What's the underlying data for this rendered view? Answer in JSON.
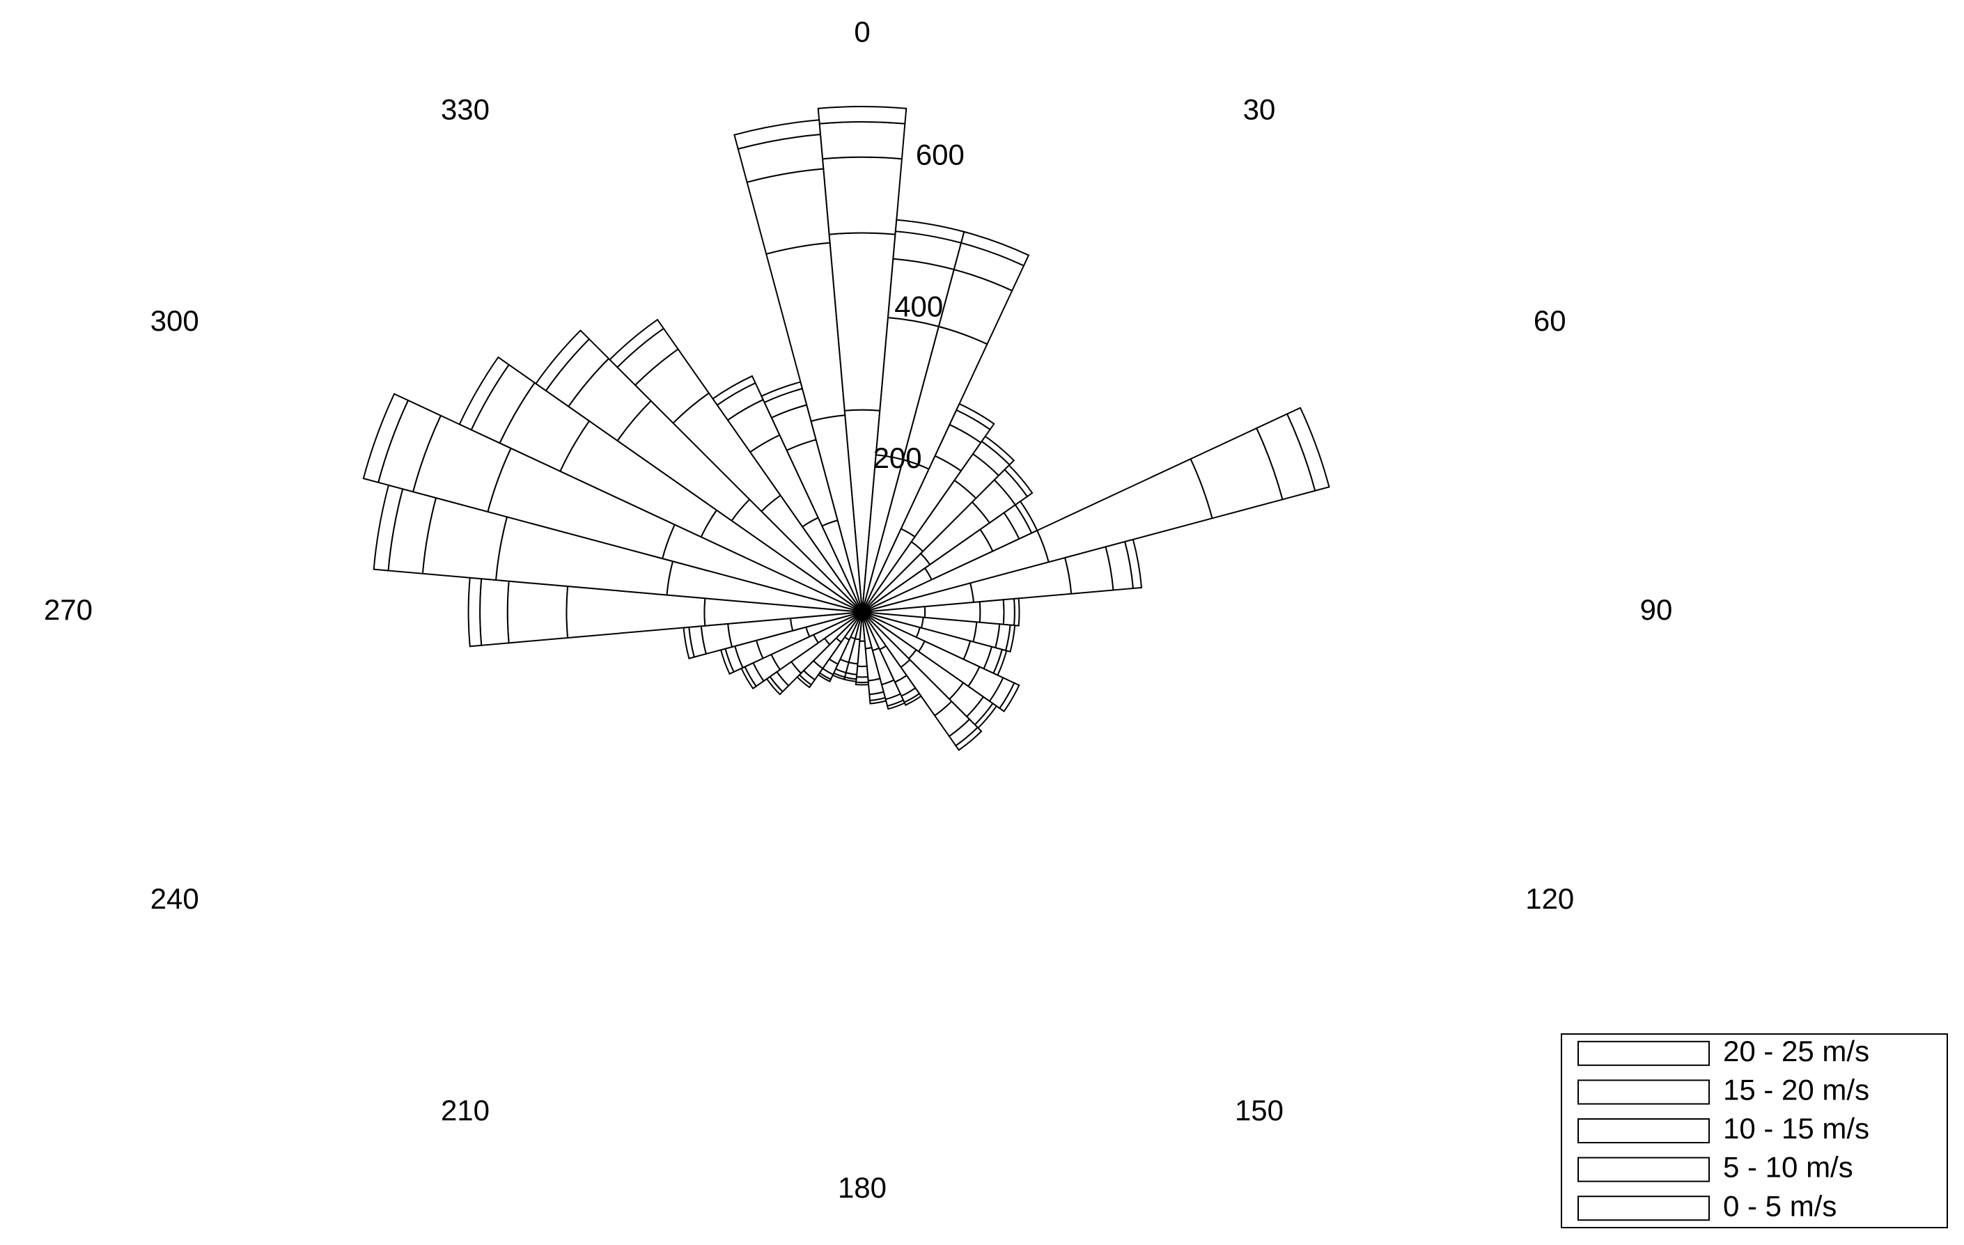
{
  "chart_data": {
    "type": "windrose",
    "x": [
      0,
      10,
      20,
      30,
      40,
      50,
      60,
      70,
      80,
      90,
      100,
      110,
      120,
      130,
      140,
      150,
      160,
      170,
      180,
      190,
      200,
      210,
      220,
      230,
      240,
      250,
      260,
      270,
      280,
      290,
      300,
      310,
      320,
      330,
      340,
      350
    ],
    "series": [
      {
        "name": "0 - 5 m/s",
        "color": "#ffffff",
        "values": [
          264,
          206,
          206,
          120,
          112,
          108,
          100,
          252,
          146,
          82,
          80,
          78,
          90,
          86,
          88,
          54,
          52,
          48,
          38,
          36,
          36,
          40,
          48,
          60,
          70,
          76,
          94,
          206,
          256,
          270,
          232,
          208,
          186,
          136,
          124,
          258
        ]
      },
      {
        "name": "5 - 10 m/s",
        "color": "#ffffff",
        "values": [
          231,
          180,
          180,
          105,
          98,
          95,
          88,
          221,
          128,
          72,
          70,
          68,
          79,
          75,
          77,
          47,
          46,
          42,
          33,
          32,
          32,
          35,
          42,
          53,
          61,
          67,
          82,
          180,
          224,
          236,
          203,
          182,
          163,
          119,
          109,
          226
        ]
      },
      {
        "name": "10 - 15 m/s",
        "color": "#ffffff",
        "values": [
          99,
          77,
          77,
          45,
          42,
          41,
          38,
          95,
          55,
          31,
          30,
          29,
          34,
          32,
          33,
          20,
          20,
          18,
          14,
          14,
          14,
          15,
          18,
          23,
          26,
          29,
          35,
          77,
          96,
          101,
          87,
          78,
          70,
          51,
          47,
          97
        ]
      },
      {
        "name": "15 - 20 m/s",
        "color": "#ffffff",
        "values": [
          46,
          36,
          36,
          21,
          20,
          19,
          18,
          44,
          26,
          14,
          14,
          14,
          16,
          15,
          15,
          9,
          9,
          8,
          7,
          6,
          6,
          7,
          8,
          11,
          12,
          13,
          16,
          36,
          45,
          47,
          41,
          36,
          33,
          24,
          22,
          45
        ]
      },
      {
        "name": "20 - 25 m/s",
        "color": "#ffffff",
        "values": [
          20,
          15,
          15,
          9,
          8,
          8,
          8,
          19,
          11,
          6,
          6,
          6,
          7,
          6,
          7,
          4,
          4,
          4,
          3,
          3,
          3,
          3,
          4,
          5,
          5,
          6,
          7,
          15,
          19,
          20,
          17,
          16,
          14,
          10,
          9,
          19
        ]
      }
    ],
    "rlim": [
      0,
      800
    ],
    "rticks": [
      200,
      400,
      600
    ],
    "angle_ticks": [
      0,
      30,
      60,
      90,
      120,
      150,
      180,
      210,
      240,
      270,
      300,
      330
    ],
    "legend": "lower right"
  }
}
